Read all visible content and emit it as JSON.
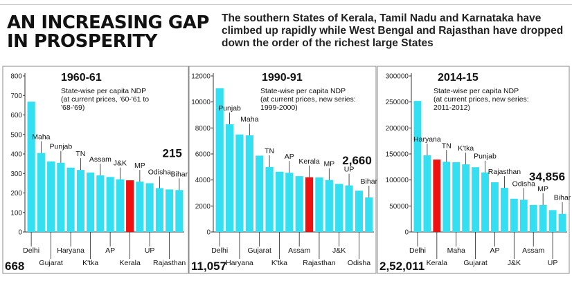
{
  "header": {
    "title_line1": "AN INCREASING GAP",
    "title_line2": "IN PROSPERITY",
    "subtitle": "The southern States of Kerala, Tamil Nadu and Karnataka have climbed up rapidly while West Bengal and Rajasthan have dropped down the order of the richest large States"
  },
  "colors": {
    "bar": "#33dff0",
    "highlight": "#ee1111",
    "axis": "#333333",
    "frame": "#888888"
  },
  "chart_data": [
    {
      "type": "bar",
      "title": "1960-61",
      "subtitle": [
        "State-wise per capita NDP",
        "(at current prices, '60-'61 to",
        "'68-'69)"
      ],
      "ylim": [
        0,
        800
      ],
      "yticks": [
        0,
        100,
        200,
        300,
        400,
        500,
        600,
        700,
        800
      ],
      "categories": [
        "Delhi",
        "Maha",
        "Gujarat",
        "Punjab",
        "Haryana",
        "TN",
        "K'tka",
        "Assam",
        "AP",
        "J&K",
        "Kerala",
        "MP",
        "UP",
        "Odisha",
        "Rajasthan",
        "Bihar"
      ],
      "values": [
        668,
        405,
        362,
        355,
        330,
        318,
        305,
        290,
        282,
        270,
        265,
        258,
        250,
        225,
        218,
        215
      ],
      "highlight": "Kerala",
      "annotations": [
        {
          "text": "668",
          "category": "Delhi",
          "style": "big-below"
        },
        {
          "text": "215",
          "category": "Bihar",
          "style": "big-above"
        }
      ]
    },
    {
      "type": "bar",
      "title": "1990-91",
      "subtitle": [
        "State-wise per capita NDP",
        "(at current prices, new series:",
        "1999-2000)"
      ],
      "ylim": [
        0,
        12000
      ],
      "yticks": [
        0,
        2000,
        4000,
        6000,
        8000,
        10000,
        12000
      ],
      "categories": [
        "Delhi",
        "Punjab",
        "Haryana",
        "Maha",
        "Gujarat",
        "TN",
        "K'tka",
        "AP",
        "Assam",
        "Kerala",
        "Rajasthan",
        "MP",
        "J&K",
        "UP",
        "Odisha",
        "Bihar"
      ],
      "values": [
        11057,
        8281,
        7499,
        7432,
        5870,
        5000,
        4632,
        4554,
        4294,
        4207,
        4191,
        3997,
        3700,
        3580,
        3177,
        2660
      ],
      "highlight": "Kerala",
      "annotations": [
        {
          "text": "11,057",
          "category": "Delhi",
          "style": "big-below"
        },
        {
          "text": "2,660",
          "category": "Bihar",
          "style": "big-above"
        }
      ]
    },
    {
      "type": "bar",
      "title": "2014-15",
      "subtitle": [
        "State-wise per capita NDP",
        "(at current prices, new series:",
        "2011-2012)"
      ],
      "ylim": [
        0,
        300000
      ],
      "yticks": [
        0,
        50000,
        100000,
        150000,
        200000,
        250000,
        300000
      ],
      "categories": [
        "Delhi",
        "Haryana",
        "Kerala",
        "TN",
        "Maha",
        "K'tka",
        "Gujarat",
        "Punjab",
        "AP",
        "Rajasthan",
        "J&K",
        "Odisha",
        "Assam",
        "MP",
        "UP",
        "Bihar"
      ],
      "values": [
        252011,
        147382,
        139195,
        135000,
        134081,
        130024,
        124500,
        114561,
        95566,
        84837,
        64000,
        62000,
        52000,
        52000,
        42000,
        34856
      ],
      "highlight": "Kerala",
      "annotations": [
        {
          "text": "2,52,011",
          "category": "Delhi",
          "style": "big-below"
        },
        {
          "text": "34,856",
          "category": "Bihar",
          "style": "big-above"
        }
      ]
    }
  ]
}
